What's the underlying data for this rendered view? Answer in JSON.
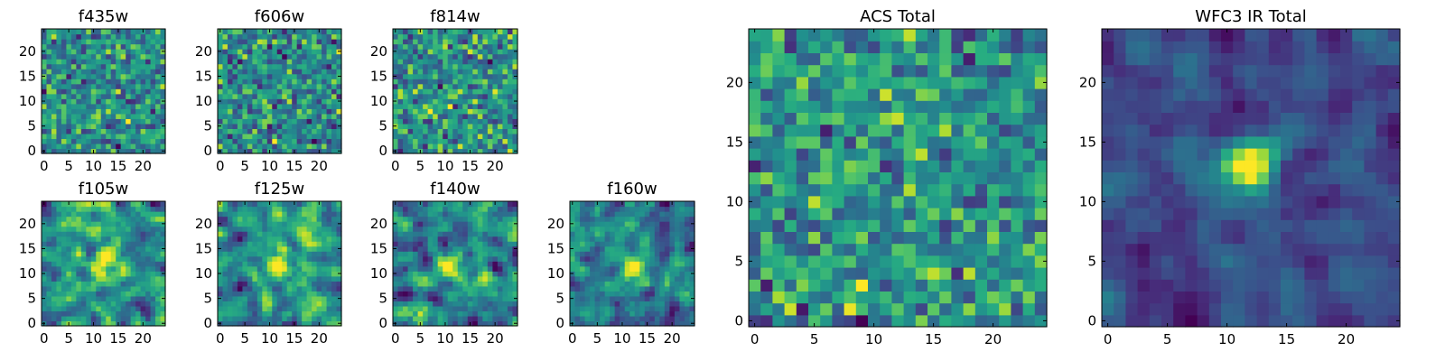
{
  "chart_data": [
    {
      "type": "heatmap",
      "title": "f435w",
      "colormap": "viridis",
      "grid_size": 25,
      "xticks": [
        0,
        5,
        10,
        15,
        20
      ],
      "yticks": [
        0,
        5,
        10,
        15,
        20
      ],
      "peak": null,
      "peak_strength": 0,
      "noise": 1.0,
      "smooth": 0,
      "seed": 11
    },
    {
      "type": "heatmap",
      "title": "f606w",
      "colormap": "viridis",
      "grid_size": 25,
      "xticks": [
        0,
        5,
        10,
        15,
        20
      ],
      "yticks": [
        0,
        5,
        10,
        15,
        20
      ],
      "peak": null,
      "peak_strength": 0,
      "noise": 1.0,
      "smooth": 0,
      "seed": 23
    },
    {
      "type": "heatmap",
      "title": "f814w",
      "colormap": "viridis",
      "grid_size": 25,
      "xticks": [
        0,
        5,
        10,
        15,
        20
      ],
      "yticks": [
        0,
        5,
        10,
        15,
        20
      ],
      "peak": null,
      "peak_strength": 0,
      "noise": 1.0,
      "smooth": 0,
      "seed": 37
    },
    {
      "type": "heatmap",
      "title": "f105w",
      "colormap": "viridis",
      "grid_size": 25,
      "xticks": [
        0,
        5,
        10,
        15,
        20
      ],
      "yticks": [
        0,
        5,
        10,
        15,
        20
      ],
      "peak": [
        12,
        12
      ],
      "peak_strength": 1.6,
      "noise": 1.0,
      "smooth": 1,
      "seed": 41
    },
    {
      "type": "heatmap",
      "title": "f125w",
      "colormap": "viridis",
      "grid_size": 25,
      "xticks": [
        0,
        5,
        10,
        15,
        20
      ],
      "yticks": [
        0,
        5,
        10,
        15,
        20
      ],
      "peak": [
        12,
        12
      ],
      "peak_strength": 1.8,
      "noise": 1.0,
      "smooth": 1,
      "seed": 53
    },
    {
      "type": "heatmap",
      "title": "f140w",
      "colormap": "viridis",
      "grid_size": 25,
      "xticks": [
        0,
        5,
        10,
        15,
        20
      ],
      "yticks": [
        0,
        5,
        10,
        15,
        20
      ],
      "peak": [
        11,
        12
      ],
      "peak_strength": 1.7,
      "noise": 1.0,
      "smooth": 1,
      "seed": 67
    },
    {
      "type": "heatmap",
      "title": "f160w",
      "colormap": "viridis",
      "grid_size": 25,
      "xticks": [
        0,
        5,
        10,
        15,
        20
      ],
      "yticks": [
        0,
        5,
        10,
        15,
        20
      ],
      "peak": [
        12,
        11
      ],
      "peak_strength": 1.6,
      "noise": 1.0,
      "smooth": 1,
      "seed": 79
    },
    {
      "type": "heatmap",
      "title": "ACS Total",
      "colormap": "viridis",
      "grid_size": 25,
      "xticks": [
        0,
        5,
        10,
        15,
        20
      ],
      "yticks": [
        0,
        5,
        10,
        15,
        20
      ],
      "peak": null,
      "peak_strength": 0,
      "noise": 1.0,
      "smooth": 0,
      "seed": 97
    },
    {
      "type": "heatmap",
      "title": "WFC3 IR Total",
      "colormap": "viridis",
      "grid_size": 25,
      "xticks": [
        0,
        5,
        10,
        15,
        20
      ],
      "yticks": [
        0,
        5,
        10,
        15,
        20
      ],
      "peak": [
        12,
        13
      ],
      "peak_strength": 3.2,
      "noise": 0.7,
      "smooth": 1,
      "seed": 113
    }
  ]
}
